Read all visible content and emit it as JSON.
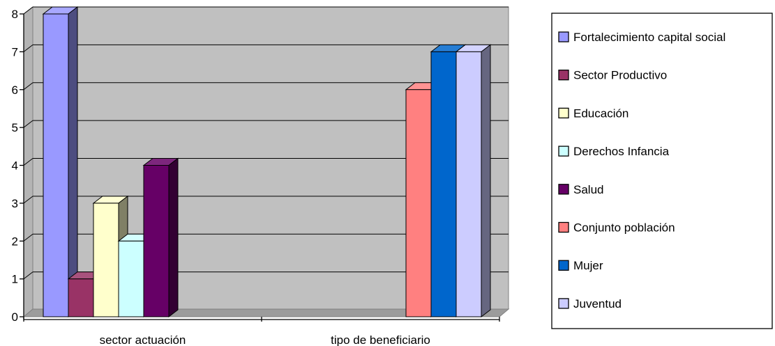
{
  "chart_data": {
    "type": "bar",
    "categories": [
      "sector actuación",
      "tipo de beneficiario"
    ],
    "series": [
      {
        "name": "Fortalecimiento capital social",
        "color": "#9999ff",
        "values": [
          8,
          0
        ]
      },
      {
        "name": "Sector Productivo",
        "color": "#993366",
        "values": [
          1,
          0
        ]
      },
      {
        "name": "Educación",
        "color": "#ffffcc",
        "values": [
          3,
          0
        ]
      },
      {
        "name": "Derechos Infancia",
        "color": "#ccffff",
        "values": [
          2,
          0
        ]
      },
      {
        "name": "Salud",
        "color": "#660066",
        "values": [
          4,
          0
        ]
      },
      {
        "name": "Conjunto población",
        "color": "#ff8080",
        "values": [
          0,
          6
        ]
      },
      {
        "name": "Mujer",
        "color": "#0066cc",
        "values": [
          0,
          7
        ]
      },
      {
        "name": "Juventud",
        "color": "#ccccff",
        "values": [
          0,
          7
        ]
      }
    ],
    "y_ticks": [
      "0",
      "1",
      "2",
      "3",
      "4",
      "5",
      "6",
      "7",
      "8"
    ],
    "ylim": [
      0,
      8
    ],
    "grid": true,
    "legend_position": "right",
    "three_d": true
  }
}
